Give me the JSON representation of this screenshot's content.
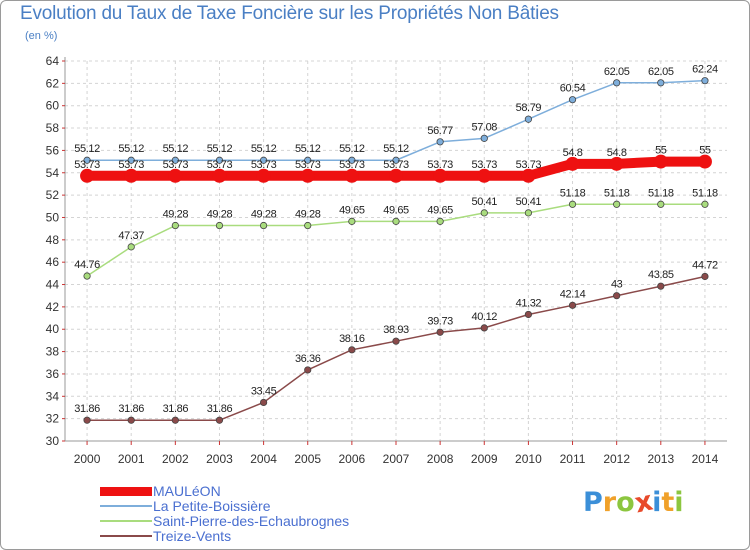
{
  "header": {
    "title": "Evolution du Taux de Taxe Foncière sur les Propriétés Non Bâties",
    "subtitle": "(en %)"
  },
  "logo": {
    "letters": [
      "P",
      "r",
      "o",
      "x",
      "i",
      "t",
      "i"
    ],
    "colors": [
      "#3b8fd8",
      "#f0a12a",
      "#8cc63f",
      "#e84a2b",
      "#3b8fd8",
      "#f0a12a",
      "#8cc63f"
    ]
  },
  "chart_data": {
    "type": "line",
    "title": "Evolution du Taux de Taxe Foncière sur les Propriétés Non Bâties",
    "ylabel": "(en %)",
    "xlabel": "",
    "ylim": [
      30,
      64
    ],
    "yticks": [
      30,
      32,
      34,
      36,
      38,
      40,
      42,
      44,
      46,
      48,
      50,
      52,
      54,
      56,
      58,
      60,
      62,
      64
    ],
    "categories": [
      "2000",
      "2001",
      "2002",
      "2003",
      "2004",
      "2005",
      "2006",
      "2007",
      "2008",
      "2009",
      "2010",
      "2011",
      "2012",
      "2013",
      "2014"
    ],
    "grid": true,
    "legend_position": "bottom-left",
    "series": [
      {
        "name": "MAULéON",
        "color": "#ee1111",
        "values": [
          53.73,
          53.73,
          53.73,
          53.73,
          53.73,
          53.73,
          53.73,
          53.73,
          53.73,
          53.73,
          53.73,
          54.8,
          54.8,
          55,
          55
        ],
        "labels": [
          "53.73",
          "53.73",
          "53.73",
          "53.73",
          "53.73",
          "53.73",
          "53.73",
          "53.73",
          "53.73",
          "53.73",
          "53.73",
          "54.8",
          "54.8",
          "55",
          "55"
        ]
      },
      {
        "name": "La Petite-Boissière",
        "color": "#7eaedb",
        "values": [
          55.12,
          55.12,
          55.12,
          55.12,
          55.12,
          55.12,
          55.12,
          55.12,
          56.77,
          57.08,
          58.79,
          60.54,
          62.05,
          62.05,
          62.24
        ],
        "labels": [
          "55.12",
          "55.12",
          "55.12",
          "55.12",
          "55.12",
          "55.12",
          "55.12",
          "55.12",
          "56.77",
          "57.08",
          "58.79",
          "60.54",
          "62.05",
          "62.05",
          "62.24"
        ]
      },
      {
        "name": "Saint-Pierre-des-Echaubrognes",
        "color": "#a9dc7e",
        "values": [
          44.76,
          47.37,
          49.28,
          49.28,
          49.28,
          49.28,
          49.65,
          49.65,
          49.65,
          50.41,
          50.41,
          51.18,
          51.18,
          51.18,
          51.18
        ],
        "labels": [
          "44.76",
          "47.37",
          "49.28",
          "49.28",
          "49.28",
          "49.28",
          "49.65",
          "49.65",
          "49.65",
          "50.41",
          "50.41",
          "51.18",
          "51.18",
          "51.18",
          "51.18"
        ]
      },
      {
        "name": "Treize-Vents",
        "color": "#8a4a4a",
        "values": [
          31.86,
          31.86,
          31.86,
          31.86,
          33.45,
          36.36,
          38.16,
          38.93,
          39.73,
          40.12,
          41.32,
          42.14,
          43,
          43.85,
          44.72
        ],
        "labels": [
          "31.86",
          "31.86",
          "31.86",
          "31.86",
          "33.45",
          "36.36",
          "38.16",
          "38.93",
          "39.73",
          "40.12",
          "41.32",
          "42.14",
          "43",
          "43.85",
          "44.72"
        ]
      }
    ]
  }
}
